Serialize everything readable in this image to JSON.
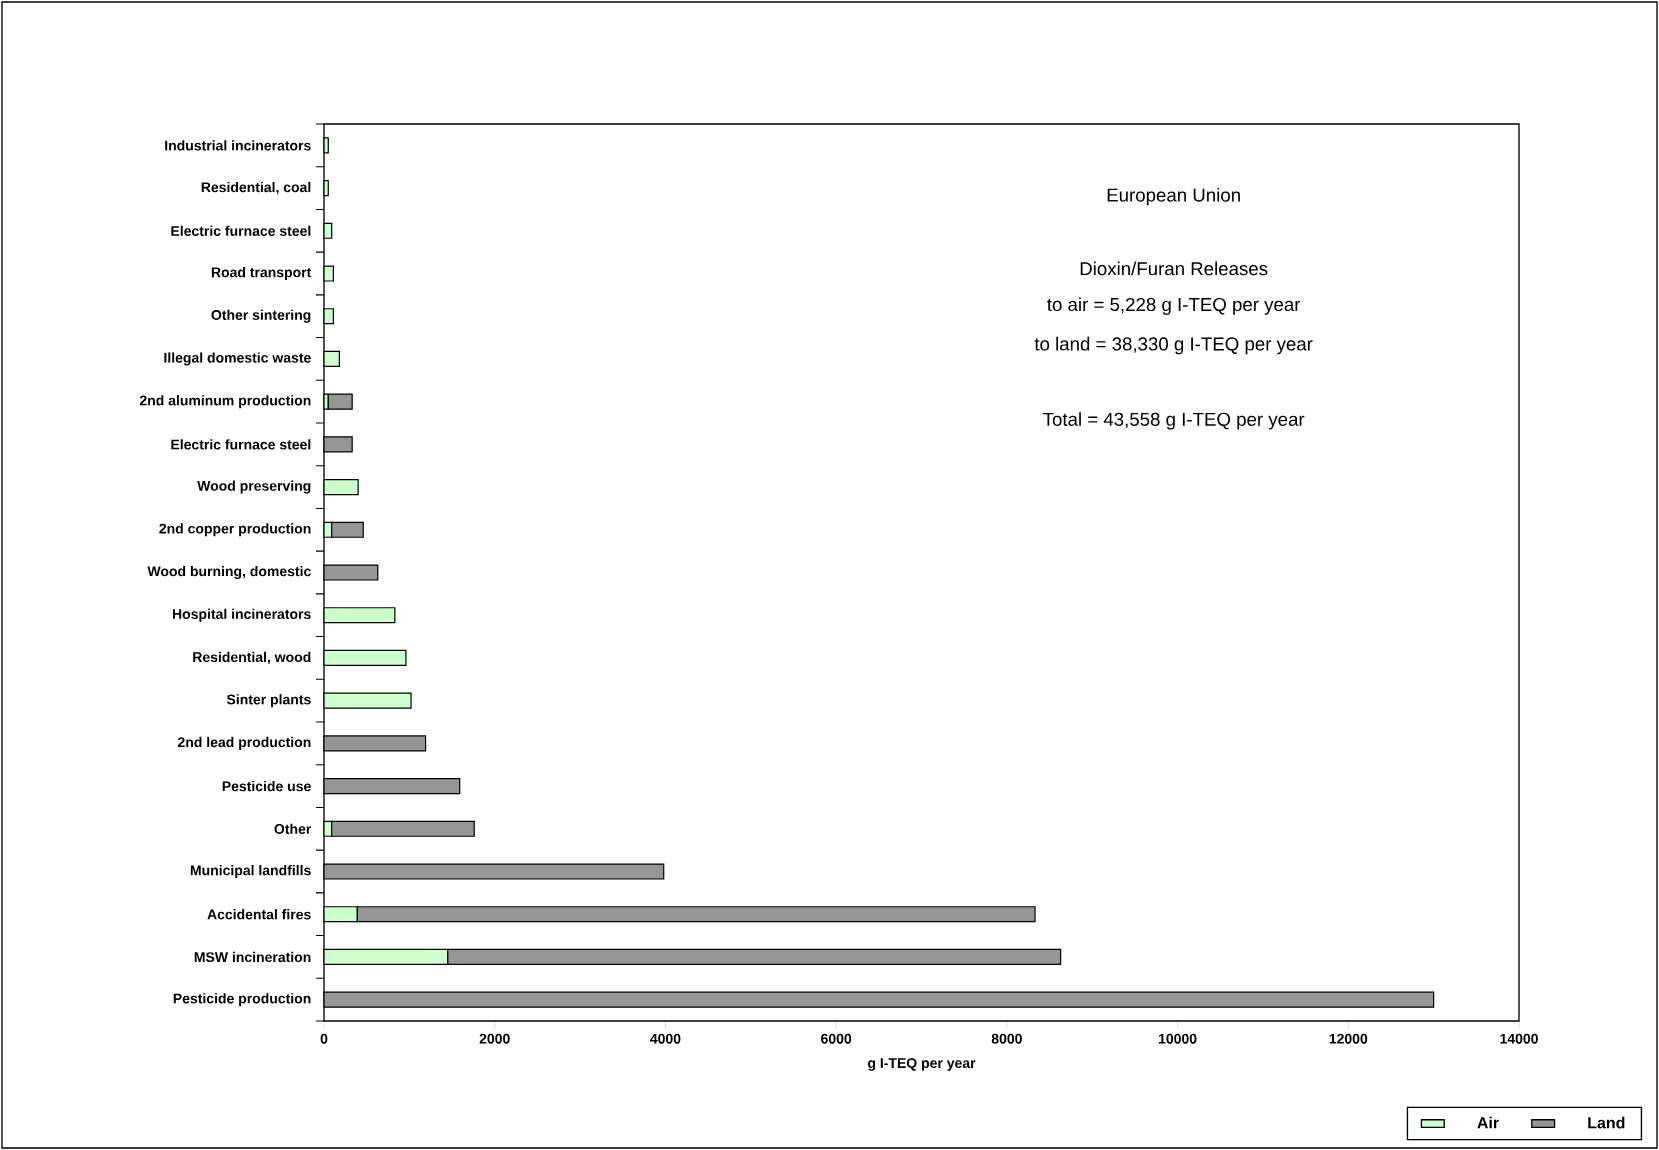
{
  "chart_data": {
    "type": "bar",
    "orientation": "horizontal",
    "stacked": true,
    "title": "European Union",
    "annotations": [
      "Dioxin/Furan Releases",
      "to air =  5,228 g I-TEQ per year",
      "to land =  38,330 g I-TEQ per year",
      "Total  = 43,558 g I-TEQ per year"
    ],
    "categories": [
      "Industrial incinerators",
      "Residential, coal",
      "Electric furnace steel",
      "Road transport",
      "Other sintering",
      "Illegal domestic waste",
      "2nd aluminum production",
      "Electric furnace steel",
      "Wood preserving",
      "2nd copper production",
      "Wood burning, domestic",
      "Hospital incinerators",
      "Residential, wood",
      "Sinter plants",
      "2nd lead production",
      "Pesticide use",
      "Other",
      "Municipal landfills",
      "Accidental fires",
      "MSW incineration",
      "Pesticide production"
    ],
    "series": [
      {
        "name": "Air",
        "color": "#ccffcc",
        "values": [
          50,
          50,
          90,
          110,
          110,
          180,
          50,
          null,
          400,
          90,
          null,
          830,
          960,
          1020,
          null,
          null,
          90,
          null,
          390,
          1450,
          null
        ]
      },
      {
        "name": "Land",
        "color": "#969696",
        "values": [
          null,
          null,
          null,
          null,
          null,
          null,
          280,
          330,
          null,
          370,
          630,
          null,
          null,
          null,
          1190,
          1590,
          1670,
          3980,
          7940,
          7180,
          13000
        ]
      }
    ],
    "xlim": [
      0,
      14000
    ],
    "xticks": [
      0,
      2000,
      4000,
      6000,
      8000,
      10000,
      12000,
      14000
    ],
    "xlabel": "g I-TEQ per year",
    "legend": "bottom right"
  }
}
